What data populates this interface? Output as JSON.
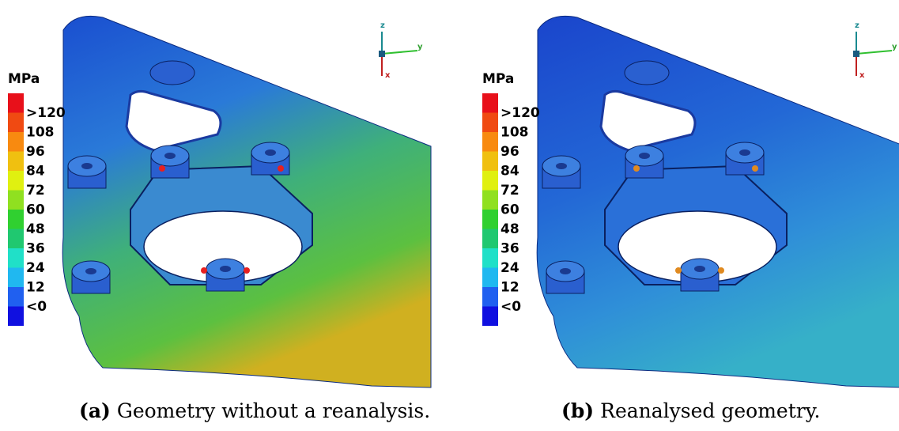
{
  "panels": [
    {
      "unit": "MPa",
      "legend": [
        ">120",
        "108",
        "96",
        "84",
        "72",
        "60",
        "48",
        "36",
        "24",
        "12",
        "<0"
      ],
      "axes": {
        "z": "z",
        "y": "y",
        "x": "x"
      },
      "caption": {
        "label": "(a)",
        "text": "Geometry without a reanalysis."
      }
    },
    {
      "unit": "MPa",
      "legend": [
        ">120",
        "108",
        "96",
        "84",
        "72",
        "60",
        "48",
        "36",
        "24",
        "12",
        "<0"
      ],
      "axes": {
        "z": "z",
        "y": "y",
        "x": "x"
      },
      "caption": {
        "label": "(b)",
        "text": "Reanalysed geometry."
      }
    }
  ]
}
